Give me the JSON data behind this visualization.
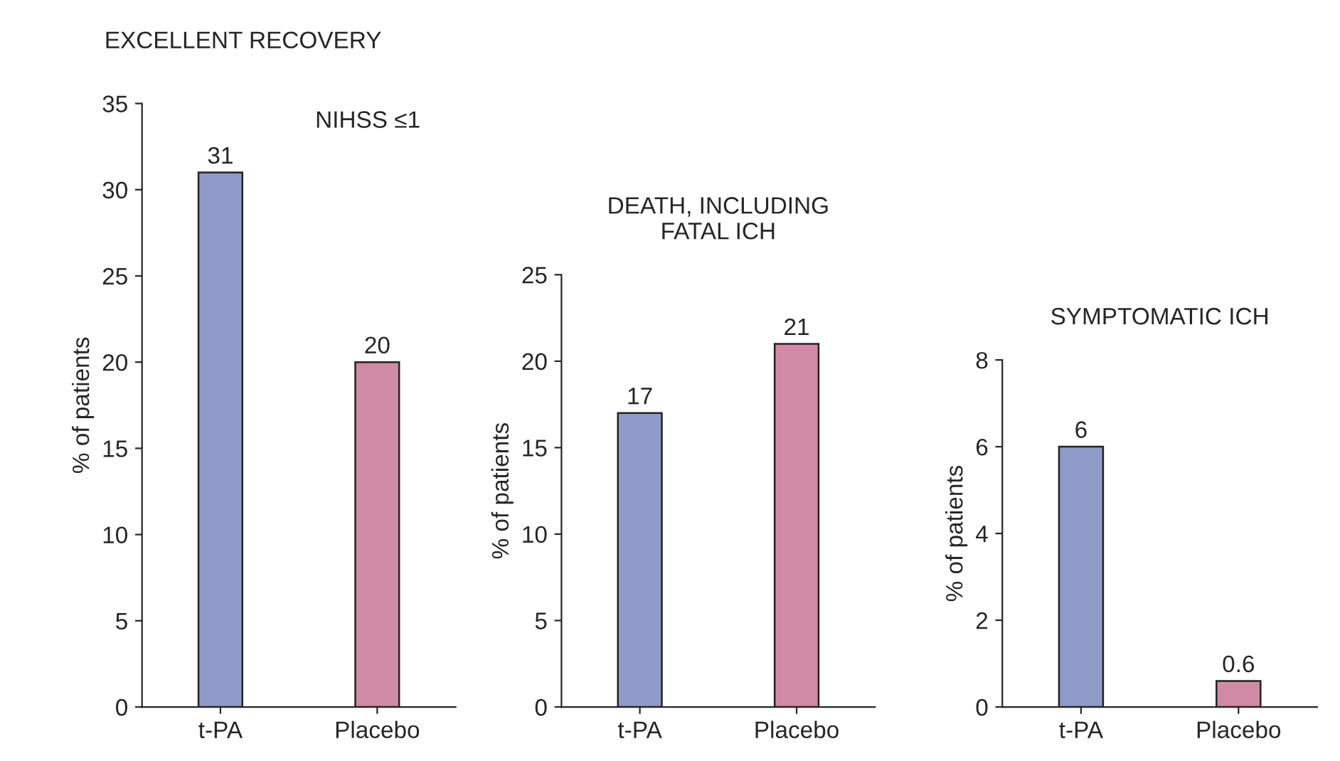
{
  "chart_data": [
    {
      "type": "bar",
      "title": "EXCELLENT RECOVERY",
      "subtitle": "NIHSS ≤1",
      "ylabel": "% of patients",
      "categories": [
        "t-PA",
        "Placebo"
      ],
      "values": [
        31,
        20
      ],
      "colors": [
        "#8f9ac8",
        "#d18aa6"
      ],
      "ylim": [
        0,
        35
      ],
      "yticks": [
        0,
        5,
        10,
        15,
        20,
        25,
        30,
        35
      ],
      "data_labels": true,
      "grid": false,
      "legend": false
    },
    {
      "type": "bar",
      "title": "DEATH, INCLUDING\nFATAL ICH",
      "ylabel": "% of patients",
      "categories": [
        "t-PA",
        "Placebo"
      ],
      "values": [
        17,
        21
      ],
      "colors": [
        "#8f9ac8",
        "#d18aa6"
      ],
      "ylim": [
        0,
        25
      ],
      "yticks": [
        0,
        5,
        10,
        15,
        20,
        25
      ],
      "data_labels": true,
      "grid": false,
      "legend": false
    },
    {
      "type": "bar",
      "title": "SYMPTOMATIC ICH",
      "ylabel": "% of patients",
      "categories": [
        "t-PA",
        "Placebo"
      ],
      "values": [
        6,
        0.6
      ],
      "colors": [
        "#8f9ac8",
        "#d18aa6"
      ],
      "ylim": [
        0,
        8
      ],
      "yticks": [
        0,
        2,
        4,
        6,
        8
      ],
      "data_labels": true,
      "grid": false,
      "legend": false
    }
  ]
}
